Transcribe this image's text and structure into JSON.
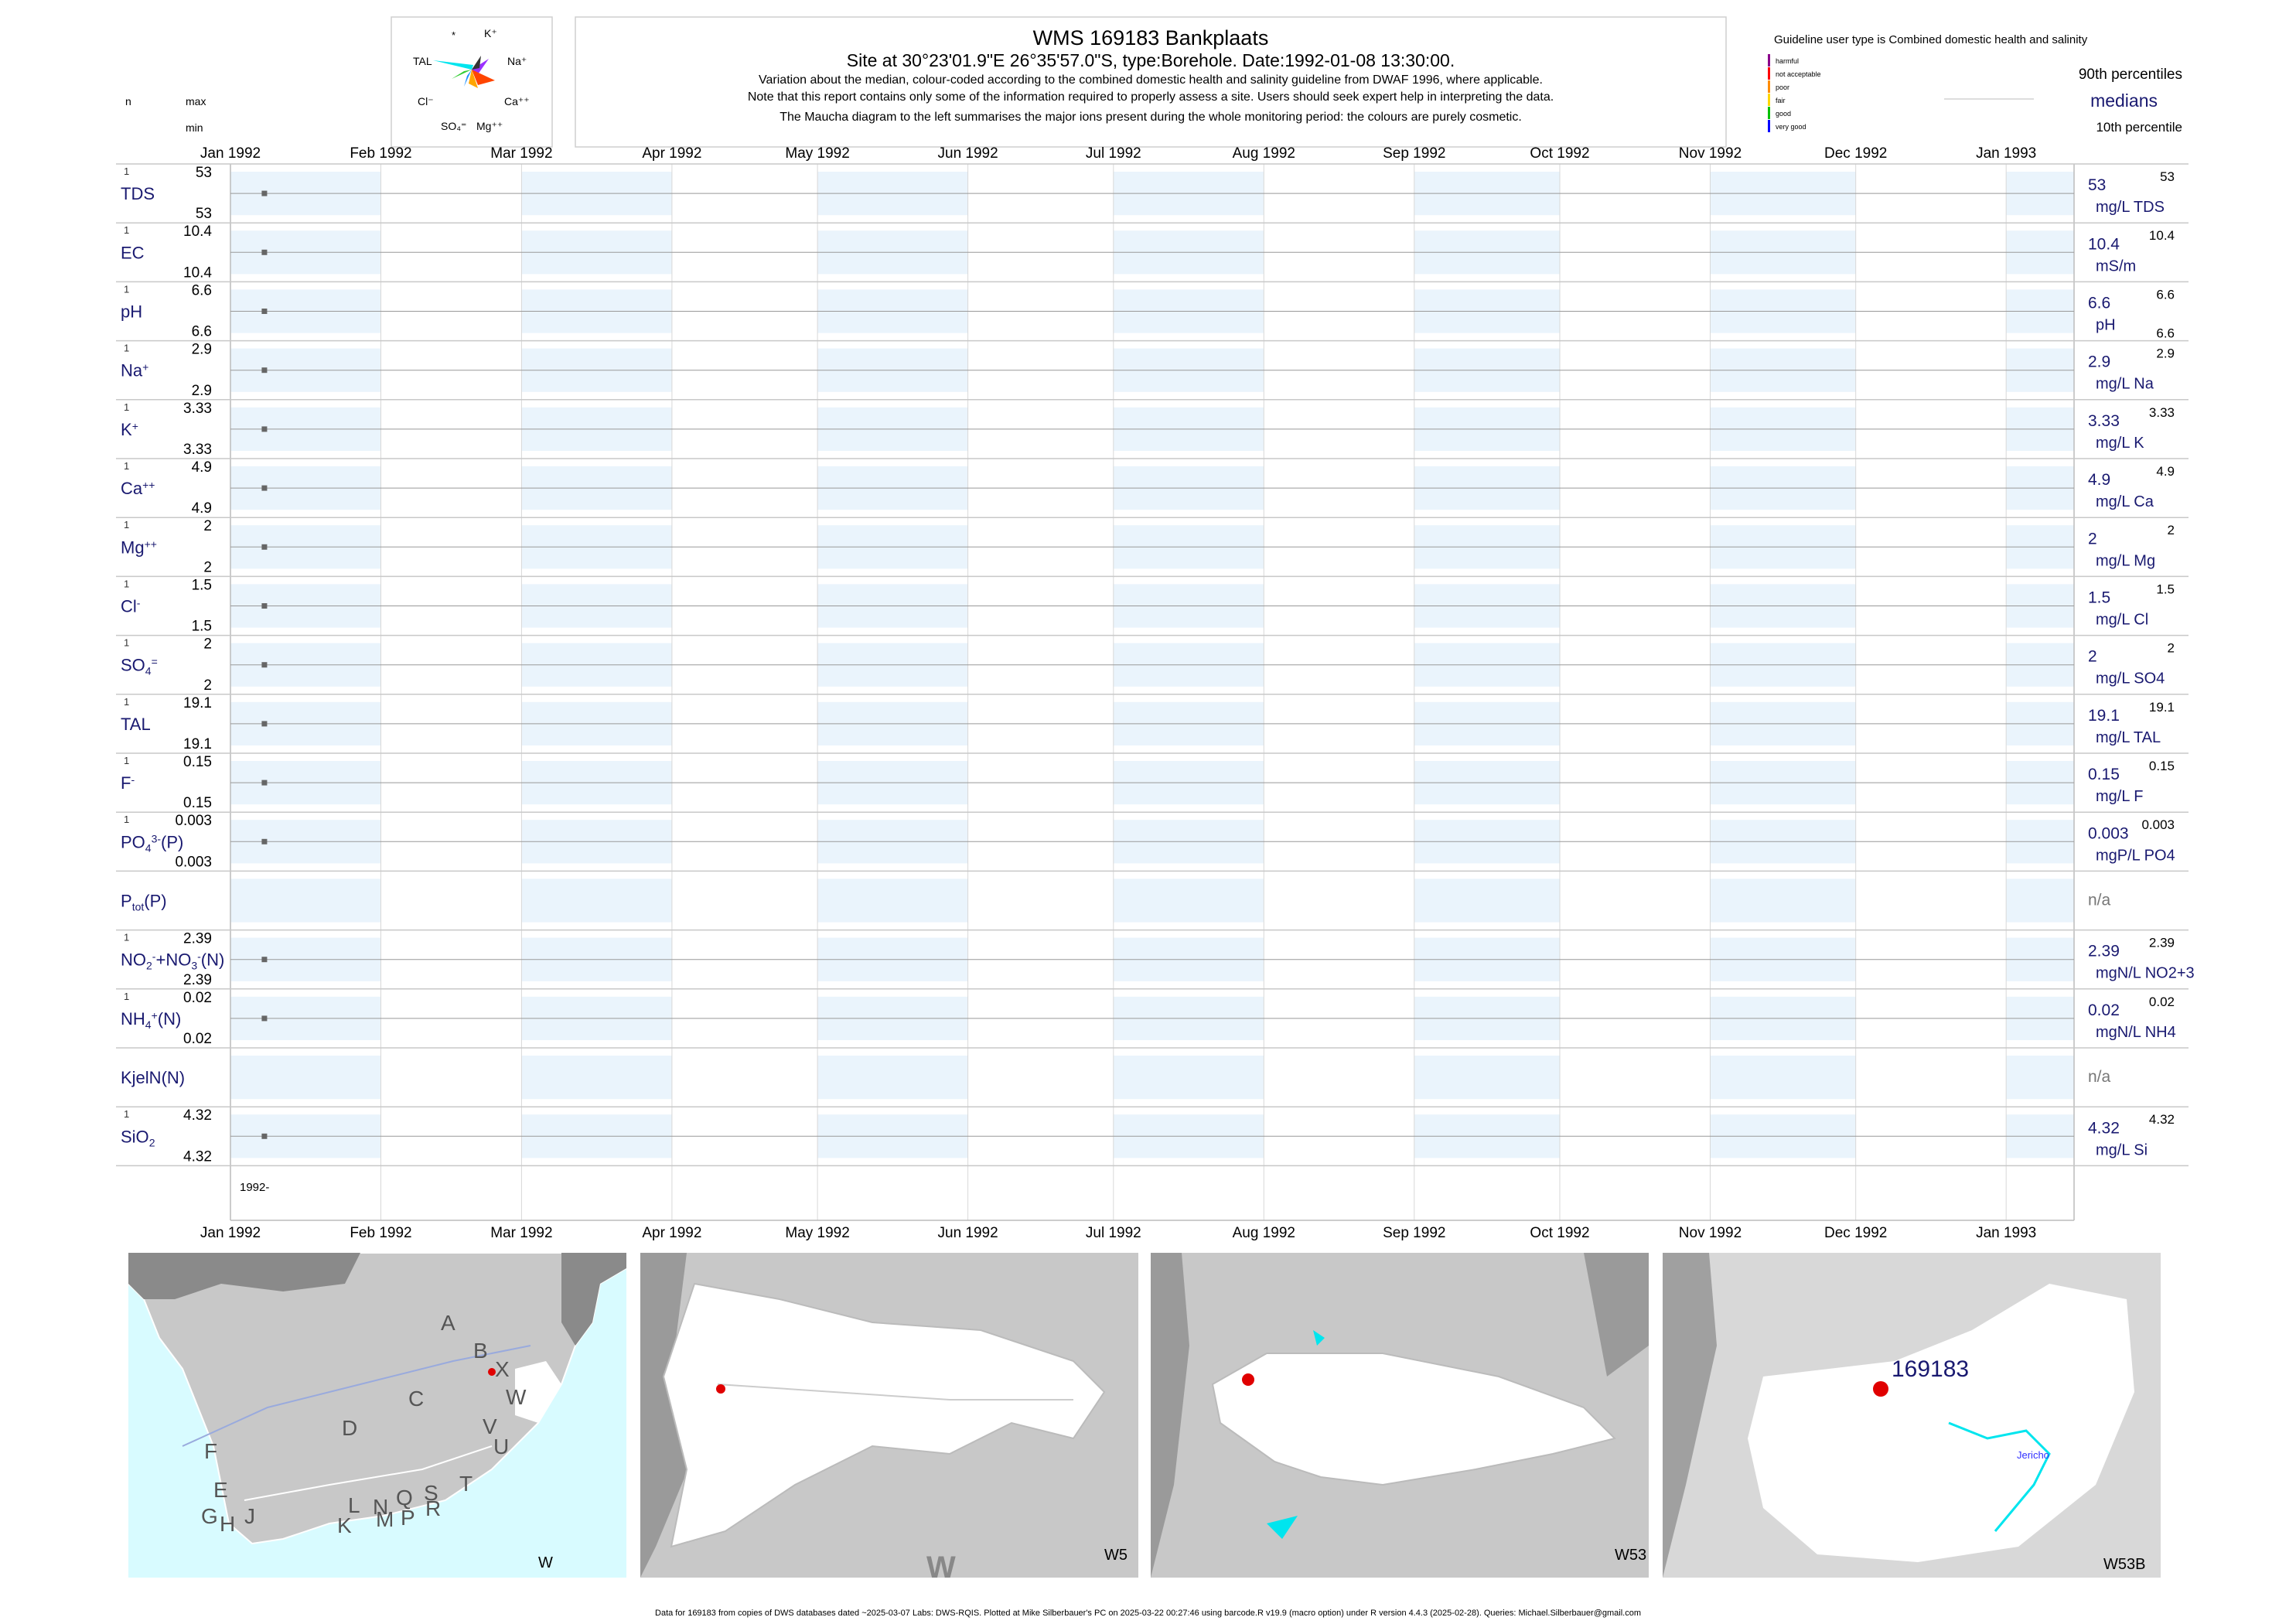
{
  "header": {
    "title": "WMS 169183  Bankplaats",
    "subtitle": "Site at 30°23'01.9\"E 26°35'57.0\"S, type:Borehole. Date:1992-01-08 13:30:00.",
    "note1": "Variation about the median,  colour-coded according to the combined domestic health and salinity guideline from DWAF 1996, where applicable.",
    "note2": "Note that this report contains only some of the information required to properly assess a site. Users should seek expert help in interpreting the data.",
    "note3": "The Maucha diagram to the left summarises the major ions present during the whole monitoring period: the colours are purely cosmetic."
  },
  "left_header": {
    "n": "n",
    "max": "max",
    "min": "min"
  },
  "maucha": {
    "labels": [
      "*",
      "K⁺",
      "TAL",
      "Na⁺",
      "Cl⁻",
      "Ca⁺⁺",
      "SO₄⁼",
      "Mg⁺⁺"
    ]
  },
  "legend": {
    "guideline_title": "Guideline user type is Combined domestic health and salinity",
    "classes": [
      {
        "label": "harmful",
        "color": "#8b008b"
      },
      {
        "label": "not acceptable",
        "color": "#ff0000"
      },
      {
        "label": "poor",
        "color": "#ff8c00"
      },
      {
        "label": "fair",
        "color": "#ffd700"
      },
      {
        "label": "good",
        "color": "#00c000"
      },
      {
        "label": "very good",
        "color": "#0000ff"
      }
    ],
    "p90": "90th percentiles",
    "medians": "medians",
    "p10": "10th percentile"
  },
  "chart_data": {
    "type": "scatter",
    "x_axis_ticks": [
      "Jan 1992",
      "Feb 1992",
      "Mar 1992",
      "Apr 1992",
      "May 1992",
      "Jun 1992",
      "Jul 1992",
      "Aug 1992",
      "Sep 1992",
      "Oct 1992",
      "Nov 1992",
      "Dec 1992",
      "Jan 1993"
    ],
    "xlim": [
      "1992-01-01",
      "1993-01-15"
    ],
    "bottom_axis_label": "1992-",
    "sample_date": "1992-01-08",
    "series": [
      {
        "name": "TDS",
        "html": "TDS",
        "n": "1",
        "max": "53",
        "min": "53",
        "median": "53",
        "p90": "53",
        "unit": "mg/L TDS",
        "value": 53
      },
      {
        "name": "EC",
        "html": "EC",
        "n": "1",
        "max": "10.4",
        "min": "10.4",
        "median": "10.4",
        "p90": "10.4",
        "unit": "mS/m",
        "value": 10.4
      },
      {
        "name": "pH",
        "html": "pH",
        "n": "1",
        "max": "6.6",
        "min": "6.6",
        "median": "6.6",
        "p90": "6.6",
        "p10": "6.6",
        "unit": "pH",
        "value": 6.6
      },
      {
        "name": "Na+",
        "html": "Na<sup>+</sup>",
        "n": "1",
        "max": "2.9",
        "min": "2.9",
        "median": "2.9",
        "p90": "2.9",
        "unit": "mg/L Na",
        "value": 2.9
      },
      {
        "name": "K+",
        "html": "K<sup>+</sup>",
        "n": "1",
        "max": "3.33",
        "min": "3.33",
        "median": "3.33",
        "p90": "3.33",
        "unit": "mg/L K",
        "value": 3.33
      },
      {
        "name": "Ca++",
        "html": "Ca<sup>++</sup>",
        "n": "1",
        "max": "4.9",
        "min": "4.9",
        "median": "4.9",
        "p90": "4.9",
        "unit": "mg/L Ca",
        "value": 4.9
      },
      {
        "name": "Mg++",
        "html": "Mg<sup>++</sup>",
        "n": "1",
        "max": "2",
        "min": "2",
        "median": "2",
        "p90": "2",
        "unit": "mg/L Mg",
        "value": 2
      },
      {
        "name": "Cl-",
        "html": "Cl<sup>-</sup>",
        "n": "1",
        "max": "1.5",
        "min": "1.5",
        "median": "1.5",
        "p90": "1.5",
        "unit": "mg/L Cl",
        "value": 1.5
      },
      {
        "name": "SO4=",
        "html": "SO<sub>4</sub><sup>=</sup>",
        "n": "1",
        "max": "2",
        "min": "2",
        "median": "2",
        "p90": "2",
        "unit": "mg/L SO4",
        "value": 2
      },
      {
        "name": "TAL",
        "html": "TAL",
        "n": "1",
        "max": "19.1",
        "min": "19.1",
        "median": "19.1",
        "p90": "19.1",
        "unit": "mg/L TAL",
        "value": 19.1
      },
      {
        "name": "F-",
        "html": "F<sup>-</sup>",
        "n": "1",
        "max": "0.15",
        "min": "0.15",
        "median": "0.15",
        "p90": "0.15",
        "unit": "mg/L F",
        "value": 0.15
      },
      {
        "name": "PO4(P)",
        "html": "PO<sub>4</sub><sup>3-</sup>(P)",
        "n": "1",
        "max": "0.003",
        "min": "0.003",
        "median": "0.003",
        "p90": "0.003",
        "unit": "mgP/L PO4",
        "value": 0.003
      },
      {
        "name": "Ptot(P)",
        "html": "P<sub>tot</sub>(P)",
        "n": "",
        "max": "",
        "min": "",
        "median": "n/a",
        "p90": "",
        "unit": "",
        "value": null
      },
      {
        "name": "NO2+NO3(N)",
        "html": "NO<sub>2</sub><sup>-</sup>+NO<sub>3</sub><sup>-</sup>(N)",
        "n": "1",
        "max": "2.39",
        "min": "2.39",
        "median": "2.39",
        "p90": "2.39",
        "unit": "mgN/L NO2+3",
        "value": 2.39
      },
      {
        "name": "NH4(N)",
        "html": "NH<sub>4</sub><sup>+</sup>(N)",
        "n": "1",
        "max": "0.02",
        "min": "0.02",
        "median": "0.02",
        "p90": "0.02",
        "unit": "mgN/L NH4",
        "value": 0.02
      },
      {
        "name": "KjelN(N)",
        "html": "KjelN(N)",
        "n": "",
        "max": "",
        "min": "",
        "median": "n/a",
        "p90": "",
        "unit": "",
        "value": null
      },
      {
        "name": "SiO2",
        "html": "SiO<sub>2</sub>",
        "n": "1",
        "max": "4.32",
        "min": "4.32",
        "median": "4.32",
        "p90": "4.32",
        "unit": "mg/L Si",
        "value": 4.32
      }
    ]
  },
  "maps": [
    {
      "label": "W",
      "regions": [
        "A",
        "B",
        "X",
        "W",
        "C",
        "V",
        "U",
        "D",
        "T",
        "F",
        "E",
        "L",
        "N",
        "Q",
        "S",
        "G",
        "H",
        "J",
        "K",
        "M",
        "P",
        "R"
      ]
    },
    {
      "label": "W5",
      "overlay": "W"
    },
    {
      "label": "W53"
    },
    {
      "label": "W53B",
      "site": "169183",
      "place": "Jericho"
    }
  ],
  "footer": "Data for 169183 from copies of DWS databases dated ~2025-03-07 Labs: DWS-RQIS. Plotted at Mike Silberbauer's PC on 2025-03-22 00:27:46 using barcode.R v19.9 (macro option) under R version 4.4.3 (2025-02-28). Queries: Michael.Silberbauer@gmail.com",
  "colors": {
    "text_blue": "#191970",
    "band_fill": "#eaf4fc",
    "site_dot": "#e00000",
    "water": "#00e5ee",
    "sea": "#d8fbff"
  }
}
